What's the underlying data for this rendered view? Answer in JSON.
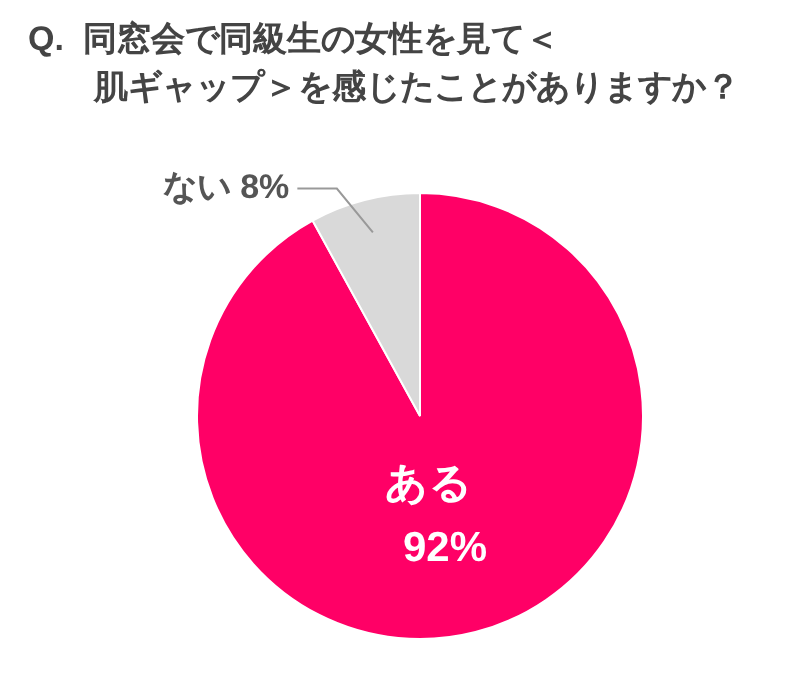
{
  "chart_data": {
    "type": "pie",
    "title": "Q.  同窓会で同級生の女性を見て＜肌ギャップ＞を感じたことがありますか？",
    "categories": [
      "ある",
      "ない"
    ],
    "values": [
      92,
      8
    ],
    "colors": [
      "#ff0066",
      "#d9d9d9"
    ],
    "value_labels": [
      "92%",
      "8%"
    ],
    "legend": false
  }
}
